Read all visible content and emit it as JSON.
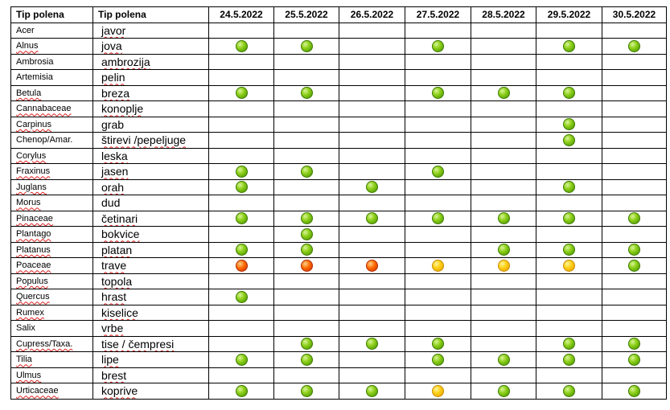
{
  "headers": [
    "Tip polena",
    "Tip polena",
    "24.5.2022",
    "25.5.2022",
    "26.5.2022",
    "27.5.2022",
    "28.5.2022",
    "29.5.2022",
    "30.5.2022"
  ],
  "level_colors": {
    "green": "#7cc313",
    "yellow": "#ffc000",
    "red": "#ff4b00"
  },
  "rows": [
    {
      "latin": "Acer",
      "latin_flagged": false,
      "local": "javor",
      "local_flagged": true,
      "levels": [
        "",
        "",
        "",
        "",
        "",
        "",
        ""
      ]
    },
    {
      "latin": "Alnus",
      "latin_flagged": true,
      "local": "jova",
      "local_flagged": true,
      "levels": [
        "green",
        "green",
        "",
        "green",
        "",
        "green",
        "green"
      ]
    },
    {
      "latin": "Ambrosia",
      "latin_flagged": false,
      "local": "ambrozija",
      "local_flagged": true,
      "levels": [
        "",
        "",
        "",
        "",
        "",
        "",
        ""
      ]
    },
    {
      "latin": "Artemisia",
      "latin_flagged": false,
      "local": "pelin",
      "local_flagged": true,
      "levels": [
        "",
        "",
        "",
        "",
        "",
        "",
        ""
      ]
    },
    {
      "latin": "Betula",
      "latin_flagged": true,
      "local": "breza",
      "local_flagged": true,
      "levels": [
        "green",
        "green",
        "",
        "green",
        "green",
        "green",
        ""
      ]
    },
    {
      "latin": "Cannabaceae",
      "latin_flagged": true,
      "local": "konoplje",
      "local_flagged": true,
      "levels": [
        "",
        "",
        "",
        "",
        "",
        "",
        ""
      ]
    },
    {
      "latin": "Carpinus",
      "latin_flagged": true,
      "local": "grab",
      "local_flagged": false,
      "levels": [
        "",
        "",
        "",
        "",
        "",
        "green",
        ""
      ]
    },
    {
      "latin": "Chenop/Amar.",
      "latin_flagged": false,
      "local": "štirevi /pepeljuge",
      "local_flagged": true,
      "levels": [
        "",
        "",
        "",
        "",
        "",
        "green",
        ""
      ]
    },
    {
      "latin": "Corylus",
      "latin_flagged": true,
      "local": "leska",
      "local_flagged": true,
      "levels": [
        "",
        "",
        "",
        "",
        "",
        "",
        ""
      ]
    },
    {
      "latin": "Fraxinus",
      "latin_flagged": true,
      "local": "jasen",
      "local_flagged": true,
      "levels": [
        "green",
        "green",
        "",
        "green",
        "",
        "",
        ""
      ]
    },
    {
      "latin": "Juglans",
      "latin_flagged": true,
      "local": "orah",
      "local_flagged": true,
      "levels": [
        "green",
        "",
        "green",
        "",
        "",
        "green",
        ""
      ]
    },
    {
      "latin": "Morus",
      "latin_flagged": true,
      "local": "dud",
      "local_flagged": false,
      "levels": [
        "",
        "",
        "",
        "",
        "",
        "",
        ""
      ]
    },
    {
      "latin": "Pinaceae",
      "latin_flagged": true,
      "local": "četinari",
      "local_flagged": true,
      "levels": [
        "green",
        "green",
        "green",
        "green",
        "green",
        "green",
        "green"
      ]
    },
    {
      "latin": "Plantago",
      "latin_flagged": true,
      "local": "bokvice",
      "local_flagged": true,
      "levels": [
        "",
        "green",
        "",
        "",
        "",
        "",
        ""
      ]
    },
    {
      "latin": "Platanus",
      "latin_flagged": true,
      "local": "platan",
      "local_flagged": true,
      "levels": [
        "green",
        "green",
        "",
        "",
        "green",
        "green",
        "green"
      ]
    },
    {
      "latin": "Poaceae",
      "latin_flagged": true,
      "local": "trave",
      "local_flagged": true,
      "levels": [
        "red",
        "red",
        "red",
        "yellow",
        "yellow",
        "yellow",
        "green"
      ]
    },
    {
      "latin": "Populus",
      "latin_flagged": true,
      "local": "topola",
      "local_flagged": true,
      "levels": [
        "",
        "",
        "",
        "",
        "",
        "",
        ""
      ]
    },
    {
      "latin": "Quercus",
      "latin_flagged": true,
      "local": "hrast",
      "local_flagged": true,
      "levels": [
        "green",
        "",
        "",
        "",
        "",
        "",
        ""
      ]
    },
    {
      "latin": "Rumex",
      "latin_flagged": true,
      "local": "kiselice",
      "local_flagged": true,
      "levels": [
        "",
        "",
        "",
        "",
        "",
        "",
        ""
      ]
    },
    {
      "latin": "Salix",
      "latin_flagged": false,
      "local": "vrbe",
      "local_flagged": true,
      "levels": [
        "",
        "",
        "",
        "",
        "",
        "",
        ""
      ]
    },
    {
      "latin": "Cupress/Taxa.",
      "latin_flagged": true,
      "local": "tise / čempresi",
      "local_flagged": true,
      "levels": [
        "",
        "green",
        "green",
        "green",
        "",
        "green",
        "green"
      ]
    },
    {
      "latin": "Tilia",
      "latin_flagged": true,
      "local": "lipe",
      "local_flagged": true,
      "levels": [
        "green",
        "green",
        "",
        "green",
        "green",
        "green",
        "green"
      ]
    },
    {
      "latin": "Ulmus",
      "latin_flagged": true,
      "local": "brest",
      "local_flagged": true,
      "levels": [
        "",
        "",
        "",
        "",
        "",
        "",
        ""
      ]
    },
    {
      "latin": "Urticaceae",
      "latin_flagged": true,
      "local": "koprive",
      "local_flagged": true,
      "levels": [
        "green",
        "green",
        "green",
        "yellow",
        "green",
        "green",
        "green"
      ]
    }
  ]
}
